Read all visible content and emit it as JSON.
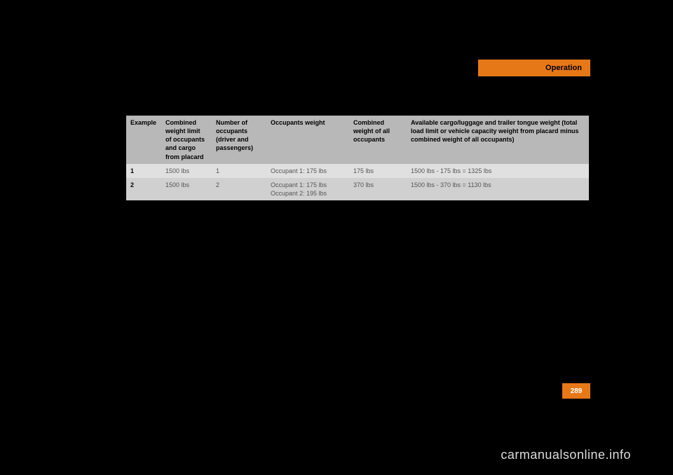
{
  "header": {
    "title": "Operation",
    "bg_color": "#e77817"
  },
  "table": {
    "columns": [
      "Example",
      "Combined weight limit of occupants and cargo from placard",
      "Number of occupants (driver and passengers)",
      "Occupants weight",
      "Combined weight of all occupants",
      "Available cargo/luggage and trailer tongue weight (total load limit or vehicle capacity weight from placard minus combined weight of all occupants)"
    ],
    "rows": [
      {
        "example": "1",
        "combined_limit": "1500 lbs",
        "num_occ": "1",
        "occ_weight": "Occupant 1: 175 lbs",
        "comb_weight": "175 lbs",
        "available": "1500 lbs - 175 lbs = 1325 lbs"
      },
      {
        "example": "2",
        "combined_limit": "1500 lbs",
        "num_occ": "2",
        "occ_weight": "Occupant 1: 175 lbs\nOccupant 2: 195 lbs",
        "comb_weight": "370 lbs",
        "available": "1500 lbs - 370 lbs = 1130 lbs"
      }
    ],
    "header_bg": "#b8b8b8",
    "row_bg_odd": "#e0e0e0",
    "row_bg_even": "#d0d0d0",
    "font_size": 9
  },
  "page_number": {
    "value": "289",
    "bg_color": "#e77817",
    "text_color": "#ffffff"
  },
  "watermark": {
    "text": "carmanualsonline.info",
    "color": "#dcdcdc"
  }
}
